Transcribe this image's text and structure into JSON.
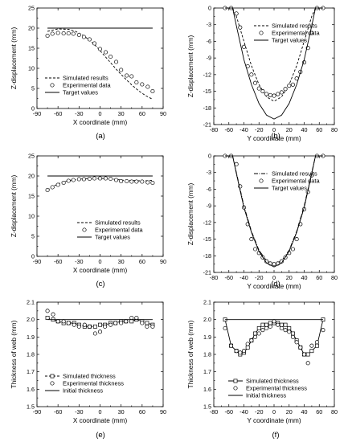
{
  "chart_data": [
    {
      "id": "a",
      "type": "line",
      "panel_label": "(a)",
      "xlabel": "X coordinate (mm)",
      "ylabel": "Z-displacement (mm)",
      "xlim": [
        -90,
        90
      ],
      "ylim": [
        0,
        25
      ],
      "xticks": [
        "-90",
        "-60",
        "-30",
        "0",
        "30",
        "60",
        "90"
      ],
      "yticks": [
        "0",
        "5",
        "10",
        "15",
        "20",
        "25"
      ],
      "legend": "bottom-left",
      "series": [
        {
          "name": "Simulated results",
          "style": "dashed",
          "x": [
            -75,
            -60,
            -45,
            -35,
            -25,
            -15,
            -5,
            5,
            15,
            25,
            35,
            45,
            55,
            65,
            75
          ],
          "y": [
            19.2,
            19.8,
            19.7,
            19.2,
            18.3,
            17.0,
            15.4,
            13.4,
            11.4,
            9.4,
            7.6,
            5.9,
            4.4,
            3.2,
            2.3
          ]
        },
        {
          "name": "Experimental data",
          "style": "circle",
          "x": [
            -75,
            -68,
            -60,
            -52,
            -45,
            -38,
            -30,
            -23,
            -15,
            -8,
            0,
            8,
            15,
            23,
            30,
            38,
            45,
            52,
            60,
            68,
            75
          ],
          "y": [
            18.1,
            18.6,
            18.8,
            18.7,
            18.7,
            18.6,
            18.3,
            17.8,
            17.2,
            16.2,
            14.8,
            14.0,
            12.9,
            11.6,
            9.6,
            8.2,
            8.0,
            6.5,
            6.0,
            5.4,
            4.3
          ]
        },
        {
          "name": "Target values",
          "style": "solid",
          "x": [
            -75,
            75
          ],
          "y": [
            20,
            20
          ]
        }
      ]
    },
    {
      "id": "b",
      "type": "line",
      "panel_label": "(b)",
      "xlabel": "Y coordinate (mm)",
      "ylabel": "Z-displacement (mm)",
      "xlim": [
        -80,
        80
      ],
      "ylim": [
        -21,
        0
      ],
      "xticks": [
        "-80",
        "-60",
        "-40",
        "-20",
        "0",
        "20",
        "40",
        "60",
        "80"
      ],
      "yticks": [
        "-21",
        "-18",
        "-15",
        "-12",
        "-9",
        "-6",
        "-3",
        "0"
      ],
      "legend": "top-center",
      "series": [
        {
          "name": "Simulated results",
          "style": "dashed",
          "x": [
            -65,
            -55,
            -50,
            -40,
            -30,
            -20,
            -10,
            0,
            10,
            20,
            30,
            40,
            50,
            55,
            65
          ],
          "y": [
            0,
            0,
            -1.5,
            -6.0,
            -10.4,
            -13.8,
            -16.0,
            -16.8,
            -16.0,
            -13.8,
            -10.4,
            -6.0,
            -1.5,
            0,
            0
          ]
        },
        {
          "name": "Experimental data",
          "style": "circle",
          "x": [
            -65,
            -57,
            -50,
            -45,
            -40,
            -35,
            -30,
            -25,
            -20,
            -15,
            -10,
            -5,
            0,
            5,
            10,
            15,
            20,
            25,
            30,
            35,
            40,
            45,
            50,
            57,
            65
          ],
          "y": [
            0,
            0,
            -1.0,
            -3.5,
            -7.0,
            -10.5,
            -12.0,
            -13.5,
            -14.5,
            -15.0,
            -15.5,
            -15.7,
            -15.8,
            -15.5,
            -15.2,
            -14.6,
            -14.0,
            -13.8,
            -12.7,
            -11.5,
            -9.8,
            -7.2,
            -4.5,
            0,
            0
          ]
        },
        {
          "name": "Target values",
          "style": "solid",
          "x": [
            -65,
            -55,
            -50,
            -40,
            -30,
            -20,
            -10,
            0,
            10,
            20,
            30,
            40,
            50,
            55,
            65
          ],
          "y": [
            0,
            0,
            -3.2,
            -9.3,
            -13.8,
            -17.2,
            -19.3,
            -20.0,
            -19.3,
            -17.2,
            -13.8,
            -9.3,
            -3.2,
            0,
            0
          ]
        }
      ]
    },
    {
      "id": "c",
      "type": "line",
      "panel_label": "(c)",
      "xlabel": "X coordinate (mm)",
      "ylabel": "Z-displacement (mm)",
      "xlim": [
        -90,
        90
      ],
      "ylim": [
        0,
        25
      ],
      "xticks": [
        "-90",
        "-60",
        "-30",
        "0",
        "30",
        "60",
        "90"
      ],
      "yticks": [
        "0",
        "5",
        "10",
        "15",
        "20",
        "25"
      ],
      "legend": "bottom-right",
      "series": [
        {
          "name": "Simulated results",
          "style": "dashed",
          "x": [
            -75,
            -65,
            -55,
            -45,
            -35,
            -25,
            -15,
            -5,
            5,
            15,
            25,
            35,
            45,
            55,
            65,
            75
          ],
          "y": [
            16.5,
            17.6,
            18.4,
            18.9,
            19.1,
            19.3,
            19.4,
            19.4,
            19.4,
            19.3,
            19.1,
            18.9,
            18.9,
            18.8,
            18.8,
            18.9
          ]
        },
        {
          "name": "Experimental data",
          "style": "circle",
          "x": [
            -75,
            -68,
            -60,
            -52,
            -45,
            -38,
            -30,
            -23,
            -15,
            -8,
            0,
            8,
            15,
            23,
            30,
            38,
            45,
            52,
            60,
            68,
            75
          ],
          "y": [
            16.5,
            17.2,
            17.8,
            18.3,
            18.8,
            19.0,
            19.2,
            19.2,
            19.3,
            19.4,
            19.4,
            19.4,
            19.3,
            19.0,
            18.7,
            18.7,
            18.6,
            18.6,
            18.6,
            18.4,
            18.3
          ]
        },
        {
          "name": "Target values",
          "style": "solid",
          "x": [
            -75,
            75
          ],
          "y": [
            20,
            20
          ]
        }
      ]
    },
    {
      "id": "d",
      "type": "line",
      "panel_label": "(d)",
      "xlabel": "Y coordinate (mm)",
      "ylabel": "Z-displacement (mm)",
      "xlim": [
        -80,
        80
      ],
      "ylim": [
        -21,
        0
      ],
      "xticks": [
        "-80",
        "-60",
        "-40",
        "-20",
        "0",
        "20",
        "40",
        "60",
        "80"
      ],
      "yticks": [
        "-21",
        "-18",
        "-15",
        "-12",
        "-9",
        "-6",
        "-3",
        "0"
      ],
      "legend": "top-center",
      "series": [
        {
          "name": "Simulated results",
          "style": "dashdot",
          "x": [
            -65,
            -55,
            -50,
            -40,
            -30,
            -20,
            -10,
            0,
            10,
            20,
            30,
            40,
            50,
            55,
            65
          ],
          "y": [
            0,
            0,
            -3.0,
            -9.0,
            -13.6,
            -17.0,
            -18.9,
            -19.5,
            -18.9,
            -17.0,
            -13.6,
            -9.0,
            -3.0,
            0,
            0
          ]
        },
        {
          "name": "Experimental data",
          "style": "circle",
          "x": [
            -65,
            -57,
            -50,
            -45,
            -40,
            -35,
            -30,
            -25,
            -20,
            -15,
            -10,
            -5,
            0,
            5,
            10,
            15,
            20,
            25,
            30,
            35,
            40,
            45,
            50,
            57,
            65
          ],
          "y": [
            0,
            0,
            -1.5,
            -5.5,
            -9.3,
            -12.3,
            -15.0,
            -16.8,
            -17.5,
            -18.3,
            -19.0,
            -19.4,
            -19.5,
            -19.4,
            -19.0,
            -18.3,
            -17.5,
            -16.8,
            -15.0,
            -12.3,
            -9.6,
            -6.5,
            -3.5,
            0,
            0
          ]
        },
        {
          "name": "Target values",
          "style": "solid",
          "x": [
            -65,
            -55,
            -50,
            -40,
            -30,
            -20,
            -10,
            0,
            10,
            20,
            30,
            40,
            50,
            55,
            65
          ],
          "y": [
            0,
            0,
            -3.2,
            -9.3,
            -13.8,
            -17.2,
            -19.3,
            -20.0,
            -19.3,
            -17.2,
            -13.8,
            -9.3,
            -3.2,
            0,
            0
          ]
        }
      ]
    },
    {
      "id": "e",
      "type": "line",
      "panel_label": "(e)",
      "xlabel": "X coordinate (mm)",
      "ylabel": "Thickness of web (mm)",
      "xlim": [
        -90,
        90
      ],
      "ylim": [
        1.5,
        2.1
      ],
      "xticks": [
        "-90",
        "-60",
        "-30",
        "0",
        "30",
        "60",
        "90"
      ],
      "yticks": [
        "1.5",
        "1.6",
        "1.7",
        "1.8",
        "1.9",
        "2.0",
        "2.1"
      ],
      "legend": "bottom-left",
      "series": [
        {
          "name": "Simulated thickness",
          "style": "dashed-square",
          "x": [
            -75,
            -67,
            -60,
            -52,
            -45,
            -37,
            -30,
            -22,
            -15,
            -7,
            0,
            7,
            15,
            22,
            30,
            37,
            45,
            52,
            60,
            67,
            75
          ],
          "y": [
            2.01,
            2.0,
            1.99,
            1.98,
            1.98,
            1.98,
            1.97,
            1.96,
            1.96,
            1.96,
            1.97,
            1.97,
            1.98,
            1.98,
            1.99,
            1.99,
            1.99,
            2.0,
            1.99,
            1.98,
            1.97
          ]
        },
        {
          "name": "Experimental thickness",
          "style": "circle",
          "x": [
            -75,
            -67,
            -60,
            -52,
            -45,
            -37,
            -30,
            -22,
            -15,
            -7,
            0,
            7,
            15,
            22,
            30,
            37,
            45,
            52,
            60,
            67,
            75
          ],
          "y": [
            2.05,
            2.03,
            1.99,
            1.99,
            1.98,
            1.97,
            1.96,
            1.97,
            1.96,
            1.92,
            1.93,
            1.96,
            1.97,
            1.98,
            1.98,
            1.99,
            2.01,
            2.01,
            1.98,
            1.96,
            1.96
          ]
        },
        {
          "name": "Initial thickness",
          "style": "solid",
          "x": [
            -75,
            75
          ],
          "y": [
            2.0,
            2.0
          ]
        }
      ]
    },
    {
      "id": "f",
      "type": "line",
      "panel_label": "(f)",
      "xlabel": "Y coordinate (mm)",
      "ylabel": "Thickness of web (mm)",
      "xlim": [
        -80,
        80
      ],
      "ylim": [
        1.5,
        2.1
      ],
      "xticks": [
        "-80",
        "-60",
        "-40",
        "-20",
        "0",
        "20",
        "40",
        "60",
        "80"
      ],
      "yticks": [
        "1.5",
        "1.6",
        "1.7",
        "1.8",
        "1.9",
        "2.0",
        "2.1"
      ],
      "legend": "bottom-center",
      "series": [
        {
          "name": "Simulated thickness",
          "style": "solid-square",
          "x": [
            -65,
            -57,
            -50,
            -45,
            -40,
            -35,
            -30,
            -25,
            -20,
            -15,
            -10,
            -5,
            0,
            5,
            10,
            15,
            20,
            25,
            30,
            35,
            40,
            45,
            50,
            57,
            65
          ],
          "y": [
            2.0,
            1.85,
            1.82,
            1.8,
            1.81,
            1.84,
            1.88,
            1.92,
            1.95,
            1.97,
            1.97,
            1.98,
            1.98,
            1.98,
            1.97,
            1.97,
            1.95,
            1.92,
            1.88,
            1.84,
            1.8,
            1.8,
            1.82,
            1.85,
            2.0
          ]
        },
        {
          "name": "Experimental thickness",
          "style": "circle",
          "x": [
            -65,
            -57,
            -50,
            -45,
            -40,
            -35,
            -30,
            -25,
            -20,
            -15,
            -10,
            -5,
            0,
            5,
            10,
            15,
            20,
            25,
            30,
            35,
            40,
            45,
            50,
            57,
            65
          ],
          "y": [
            1.95,
            1.85,
            1.82,
            1.81,
            1.82,
            1.86,
            1.88,
            1.9,
            1.92,
            1.94,
            1.95,
            1.96,
            1.99,
            1.97,
            1.95,
            1.94,
            1.93,
            1.9,
            1.87,
            1.84,
            1.8,
            1.75,
            1.85,
            1.87,
            1.94
          ]
        },
        {
          "name": "Initial thickness",
          "style": "solid",
          "x": [
            -65,
            65
          ],
          "y": [
            2.0,
            2.0
          ]
        }
      ]
    }
  ]
}
